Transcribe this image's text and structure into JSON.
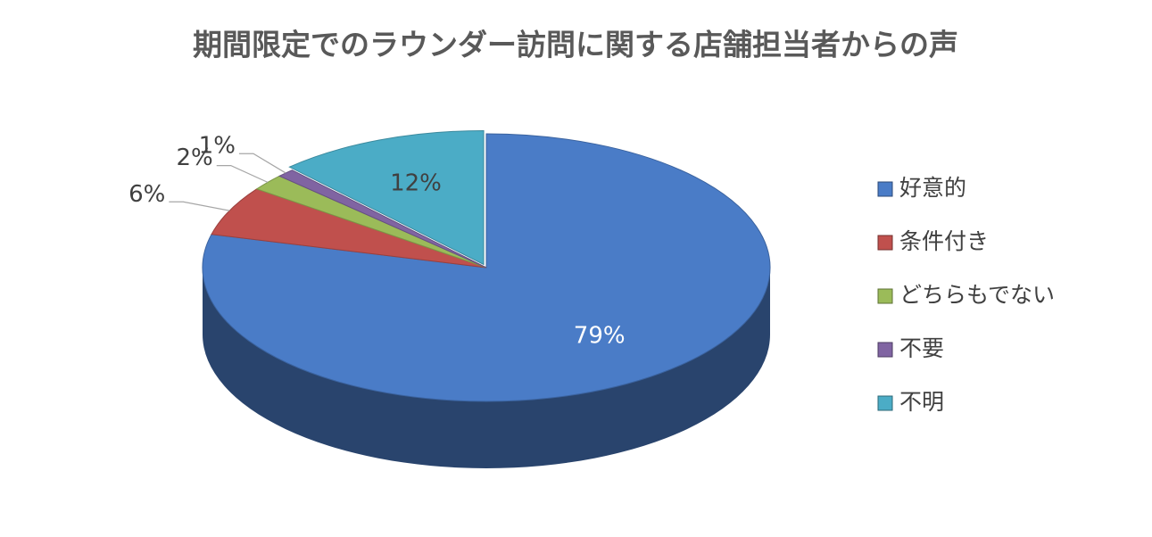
{
  "chart_data": {
    "type": "pie3d",
    "title": "期間限定でのラウンダー訪問に関する店舗担当者からの声",
    "categories": [
      "好意的",
      "条件付き",
      "どちらもでない",
      "不要",
      "不明"
    ],
    "values": [
      79,
      6,
      2,
      1,
      12
    ],
    "value_labels": [
      "79%",
      "6%",
      "2%",
      "1%",
      "12%"
    ],
    "colors": [
      "#4a7cc7",
      "#c0504d",
      "#9bbb59",
      "#8064a2",
      "#4bacc6"
    ],
    "legend": "right"
  }
}
